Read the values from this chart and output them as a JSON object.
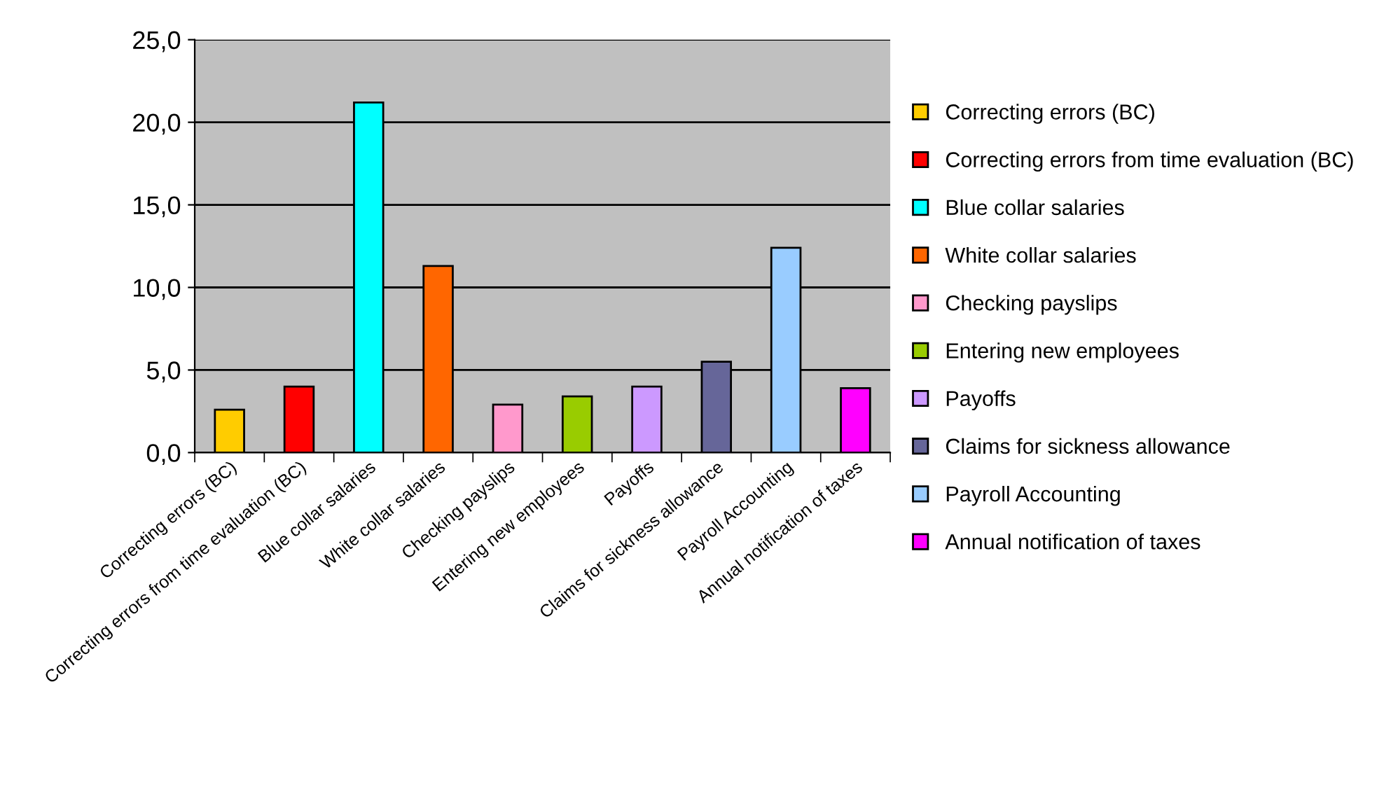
{
  "chart_data": {
    "type": "bar",
    "categories": [
      "Correcting errors (BC)",
      "Correcting errors from time evaluation (BC)",
      "Blue collar salaries",
      "White collar salaries",
      "Checking payslips",
      "Entering new employees",
      "Payoffs",
      "Claims for sickness allowance",
      "Payroll Accounting",
      "Annual notification of taxes"
    ],
    "series": [
      {
        "name": "Correcting errors (BC)",
        "color": "#ffcc00",
        "values": [
          2.6,
          null,
          null,
          null,
          null,
          null,
          null,
          null,
          null,
          null
        ]
      },
      {
        "name": "Correcting errors from time evaluation (BC)",
        "color": "#ff0000",
        "values": [
          null,
          4.0,
          null,
          null,
          null,
          null,
          null,
          null,
          null,
          null
        ]
      },
      {
        "name": "Blue collar salaries",
        "color": "#00ffff",
        "values": [
          null,
          null,
          21.2,
          null,
          null,
          null,
          null,
          null,
          null,
          null
        ]
      },
      {
        "name": "White collar salaries",
        "color": "#ff6600",
        "values": [
          null,
          null,
          null,
          11.3,
          null,
          null,
          null,
          null,
          null,
          null
        ]
      },
      {
        "name": "Checking payslips",
        "color": "#ff99cc",
        "values": [
          null,
          null,
          null,
          null,
          2.9,
          null,
          null,
          null,
          null,
          null
        ]
      },
      {
        "name": "Entering new employees",
        "color": "#99cc00",
        "values": [
          null,
          null,
          null,
          null,
          null,
          3.4,
          null,
          null,
          null,
          null
        ]
      },
      {
        "name": "Payoffs",
        "color": "#cc99ff",
        "values": [
          null,
          null,
          null,
          null,
          null,
          null,
          4.0,
          null,
          null,
          null
        ]
      },
      {
        "name": "Claims for sickness allowance",
        "color": "#666699",
        "values": [
          null,
          null,
          null,
          null,
          null,
          null,
          null,
          5.5,
          null,
          null
        ]
      },
      {
        "name": "Payroll Accounting",
        "color": "#99ccff",
        "values": [
          null,
          null,
          null,
          null,
          null,
          null,
          null,
          null,
          12.4,
          null
        ]
      },
      {
        "name": "Annual notification of taxes",
        "color": "#ff00ff",
        "values": [
          null,
          null,
          null,
          null,
          null,
          null,
          null,
          null,
          null,
          3.9
        ]
      }
    ],
    "ylim": [
      0,
      25
    ],
    "yticks": [
      {
        "value": 0,
        "label": "0,0"
      },
      {
        "value": 5,
        "label": "5,0"
      },
      {
        "value": 10,
        "label": "10,0"
      },
      {
        "value": 15,
        "label": "15,0"
      },
      {
        "value": 20,
        "label": "20,0"
      },
      {
        "value": 25,
        "label": "25,0"
      }
    ],
    "grid": "y",
    "legend": "right"
  }
}
